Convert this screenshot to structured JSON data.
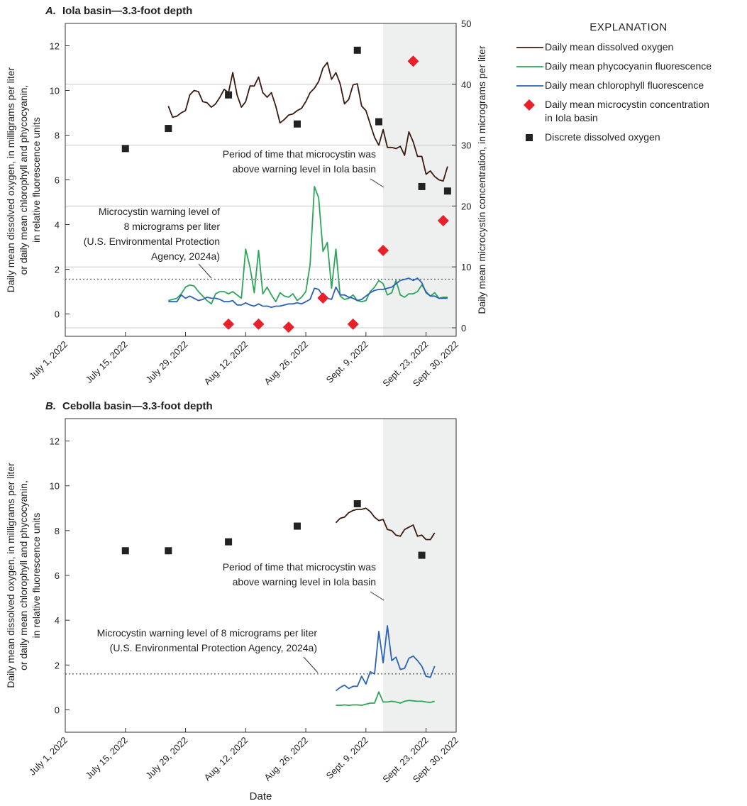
{
  "chart_data": [
    {
      "type": "line",
      "panel": "A.",
      "title": "Iola basin—3.3-foot depth",
      "ylabel": [
        "Daily mean dissolved oxygen, in milligrams per liter",
        "or daily mean chlorophyll and phycocyanin,",
        "in relative fluorescence units"
      ],
      "y2label": "Daily mean microcystin concentration, in micrograms per liter",
      "xlim": [
        "2022-07-01",
        "2022-09-30"
      ],
      "xticks": [
        {
          "value": "2022-07-01",
          "label": "July 1, 2022"
        },
        {
          "value": "2022-07-15",
          "label": "July 15, 2022"
        },
        {
          "value": "2022-07-29",
          "label": "July 29, 2022"
        },
        {
          "value": "2022-08-12",
          "label": "Aug. 12, 2022"
        },
        {
          "value": "2022-08-26",
          "label": "Aug. 26, 2022"
        },
        {
          "value": "2022-09-09",
          "label": "Sept. 9, 2022"
        },
        {
          "value": "2022-09-23",
          "label": "Sept. 23, 2022"
        },
        {
          "value": "2022-09-30",
          "label": "Sept. 30, 2022"
        }
      ],
      "ylim": [
        -1,
        13
      ],
      "yticks": [
        0,
        2,
        4,
        6,
        8,
        10,
        12
      ],
      "y2lim": [
        -1.4,
        50
      ],
      "y2ticks": [
        0,
        10,
        20,
        30,
        40,
        50
      ],
      "grid": "y2",
      "shade": [
        "2022-09-13",
        "2022-09-30"
      ],
      "shade_color": "#eef0ef",
      "threshold": {
        "value": 8,
        "axis": "y2"
      },
      "annotations": [
        {
          "lines": [
            "Period of time that microcystin was",
            "above warning level in Iola basin"
          ]
        },
        {
          "lines": [
            "Microcystin warning level of",
            "8 micrograms per liter",
            "(U.S. Environmental Protection",
            "Agency, 2024a)"
          ]
        }
      ],
      "legend_title": "EXPLANATION",
      "x": [
        "2022-07-25",
        "2022-07-26",
        "2022-07-27",
        "2022-07-28",
        "2022-07-29",
        "2022-07-30",
        "2022-07-31",
        "2022-08-01",
        "2022-08-02",
        "2022-08-03",
        "2022-08-04",
        "2022-08-05",
        "2022-08-06",
        "2022-08-07",
        "2022-08-08",
        "2022-08-09",
        "2022-08-10",
        "2022-08-11",
        "2022-08-12",
        "2022-08-13",
        "2022-08-14",
        "2022-08-15",
        "2022-08-16",
        "2022-08-17",
        "2022-08-18",
        "2022-08-19",
        "2022-08-20",
        "2022-08-21",
        "2022-08-22",
        "2022-08-23",
        "2022-08-24",
        "2022-08-25",
        "2022-08-26",
        "2022-08-27",
        "2022-08-28",
        "2022-08-29",
        "2022-08-30",
        "2022-08-31",
        "2022-09-01",
        "2022-09-02",
        "2022-09-03",
        "2022-09-04",
        "2022-09-05",
        "2022-09-06",
        "2022-09-07",
        "2022-09-08",
        "2022-09-09",
        "2022-09-10",
        "2022-09-11",
        "2022-09-12",
        "2022-09-13",
        "2022-09-14",
        "2022-09-15",
        "2022-09-16",
        "2022-09-17",
        "2022-09-18",
        "2022-09-19",
        "2022-09-20",
        "2022-09-21",
        "2022-09-22",
        "2022-09-23",
        "2022-09-24",
        "2022-09-25",
        "2022-09-26",
        "2022-09-27",
        "2022-09-28"
      ],
      "series": [
        {
          "name": "Daily mean dissolved oxygen",
          "color": "#3b1a10",
          "kind": "line",
          "values": [
            9.3,
            8.8,
            8.85,
            9.0,
            9.1,
            9.8,
            10.0,
            9.95,
            9.5,
            9.45,
            9.25,
            9.4,
            9.7,
            10.05,
            9.9,
            10.8,
            9.8,
            9.25,
            9.5,
            10.2,
            10.2,
            10.6,
            9.9,
            9.7,
            9.9,
            9.3,
            8.55,
            8.7,
            8.9,
            8.95,
            9.1,
            9.2,
            9.5,
            9.9,
            10.1,
            10.4,
            11.0,
            11.25,
            10.5,
            10.8,
            10.3,
            9.4,
            9.6,
            10.25,
            10.3,
            9.3,
            9.1,
            8.5,
            7.9,
            7.55,
            8.25,
            7.45,
            7.45,
            7.4,
            7.5,
            7.1,
            8.15,
            7.7,
            7.05,
            7.05,
            6.25,
            6.4,
            6.15,
            6.0,
            5.95,
            6.6
          ]
        },
        {
          "name": "Daily mean phycocyanin fluorescence",
          "color": "#2ca55a",
          "kind": "line",
          "values": [
            0.6,
            0.65,
            0.7,
            0.9,
            1.2,
            1.3,
            1.25,
            1.0,
            0.8,
            0.6,
            0.45,
            0.9,
            1.0,
            1.0,
            0.9,
            1.0,
            0.85,
            0.7,
            2.9,
            2.1,
            0.95,
            2.85,
            0.9,
            1.2,
            0.85,
            0.55,
            0.95,
            0.8,
            0.75,
            0.9,
            0.6,
            0.75,
            1.0,
            2.2,
            5.7,
            5.2,
            2.8,
            3.2,
            1.15,
            2.9,
            0.8,
            0.65,
            0.7,
            0.85,
            0.6,
            0.55,
            0.6,
            1.0,
            1.2,
            1.5,
            1.35,
            0.85,
            0.95,
            1.5,
            0.85,
            0.75,
            0.9,
            0.9,
            1.0,
            1.3,
            1.0,
            0.8,
            0.95,
            0.7,
            0.75,
            0.75
          ]
        },
        {
          "name": "Daily mean chlorophyll fluorescence",
          "color": "#2a62b8",
          "kind": "line",
          "values": [
            0.55,
            0.55,
            0.55,
            0.85,
            0.7,
            0.8,
            0.7,
            0.6,
            0.65,
            0.75,
            0.7,
            0.7,
            0.65,
            0.55,
            0.55,
            0.6,
            0.4,
            0.4,
            0.5,
            0.4,
            0.35,
            0.45,
            0.35,
            0.35,
            0.3,
            0.35,
            0.35,
            0.4,
            0.45,
            0.45,
            0.5,
            0.45,
            0.55,
            0.65,
            1.15,
            1.1,
            0.8,
            0.7,
            0.65,
            1.2,
            0.85,
            0.85,
            0.75,
            0.7,
            0.6,
            0.65,
            0.8,
            0.95,
            1.05,
            1.1,
            1.1,
            1.15,
            1.2,
            1.35,
            1.5,
            1.55,
            1.6,
            1.5,
            1.6,
            1.4,
            0.95,
            0.8,
            0.8,
            0.7,
            0.7,
            0.7
          ]
        },
        {
          "name": "Daily mean microcystin concentration\nin Iola basin",
          "color": "#e8202a",
          "kind": "marker",
          "marker": "diamond",
          "axis": "y2",
          "x": [
            "2022-08-08",
            "2022-08-15",
            "2022-08-22",
            "2022-08-30",
            "2022-09-06",
            "2022-09-13",
            "2022-09-20",
            "2022-09-27"
          ],
          "values": [
            0.6,
            0.6,
            0.1,
            4.9,
            0.6,
            12.7,
            43.8,
            17.6
          ]
        },
        {
          "name": "Discrete dissolved oxygen",
          "color": "#222222",
          "kind": "marker",
          "marker": "square",
          "x": [
            "2022-07-15",
            "2022-07-25",
            "2022-08-08",
            "2022-08-24",
            "2022-09-07",
            "2022-09-12",
            "2022-09-22",
            "2022-09-28"
          ],
          "values": [
            7.4,
            8.3,
            9.8,
            8.5,
            11.8,
            8.6,
            5.7,
            5.5
          ]
        }
      ]
    },
    {
      "type": "line",
      "panel": "B.",
      "title": "Cebolla basin—3.3-foot depth",
      "ylabel": [
        "Daily mean dissolved oxygen, in milligrams per liter",
        "or daily mean chlorophyll and phycocyanin,",
        "in relative fluorescence units"
      ],
      "xlabel": "Date",
      "xlim": [
        "2022-07-01",
        "2022-09-30"
      ],
      "xticks": [
        {
          "value": "2022-07-01",
          "label": "July 1, 2022"
        },
        {
          "value": "2022-07-15",
          "label": "July 15, 2022"
        },
        {
          "value": "2022-07-29",
          "label": "July 29, 2022"
        },
        {
          "value": "2022-08-12",
          "label": "Aug. 12, 2022"
        },
        {
          "value": "2022-08-26",
          "label": "Aug. 26, 2022"
        },
        {
          "value": "2022-09-09",
          "label": "Sept. 9, 2022"
        },
        {
          "value": "2022-09-23",
          "label": "Sept. 23, 2022"
        },
        {
          "value": "2022-09-30",
          "label": "Sept. 30, 2022"
        }
      ],
      "ylim": [
        -1,
        13
      ],
      "yticks": [
        0,
        2,
        4,
        6,
        8,
        10,
        12
      ],
      "shade": [
        "2022-09-13",
        "2022-09-30"
      ],
      "shade_color": "#eef0ef",
      "threshold": {
        "value": 1.6
      },
      "annotations": [
        {
          "lines": [
            "Period of time that microcystin was",
            "above warning level in Iola basin"
          ]
        },
        {
          "lines": [
            "Microcystin warning level of 8 micrograms per liter",
            "(U.S. Environmental Protection Agency, 2024a)"
          ]
        }
      ],
      "x": [
        "2022-09-02",
        "2022-09-03",
        "2022-09-04",
        "2022-09-05",
        "2022-09-06",
        "2022-09-07",
        "2022-09-08",
        "2022-09-09",
        "2022-09-10",
        "2022-09-11",
        "2022-09-12",
        "2022-09-13",
        "2022-09-14",
        "2022-09-15",
        "2022-09-16",
        "2022-09-17",
        "2022-09-18",
        "2022-09-19",
        "2022-09-20",
        "2022-09-21",
        "2022-09-22",
        "2022-09-23",
        "2022-09-24",
        "2022-09-25"
      ],
      "series": [
        {
          "color": "#3b1a10",
          "kind": "line",
          "values": [
            8.35,
            8.55,
            8.6,
            8.8,
            8.9,
            8.95,
            8.95,
            9.0,
            8.85,
            8.6,
            8.45,
            8.5,
            8.05,
            8.0,
            7.8,
            7.75,
            8.05,
            8.15,
            8.25,
            7.75,
            7.8,
            7.6,
            7.6,
            7.9
          ]
        },
        {
          "color": "#2ca55a",
          "kind": "line",
          "values": [
            0.2,
            0.2,
            0.22,
            0.2,
            0.22,
            0.22,
            0.2,
            0.25,
            0.3,
            0.3,
            0.8,
            0.35,
            0.35,
            0.38,
            0.35,
            0.3,
            0.38,
            0.42,
            0.4,
            0.38,
            0.38,
            0.35,
            0.33,
            0.38
          ]
        },
        {
          "color": "#2a62b8",
          "kind": "line",
          "values": [
            0.85,
            1.0,
            1.1,
            0.95,
            1.05,
            1.05,
            1.5,
            1.15,
            1.7,
            1.6,
            3.5,
            2.1,
            3.75,
            2.2,
            2.35,
            1.8,
            1.85,
            2.3,
            2.4,
            2.2,
            1.95,
            1.5,
            1.45,
            1.95
          ]
        },
        {
          "color": "#222222",
          "kind": "marker",
          "marker": "square",
          "x": [
            "2022-07-15",
            "2022-07-25",
            "2022-08-08",
            "2022-08-24",
            "2022-09-07",
            "2022-09-22"
          ],
          "values": [
            7.1,
            7.1,
            7.5,
            8.2,
            9.2,
            6.9
          ]
        }
      ]
    }
  ]
}
